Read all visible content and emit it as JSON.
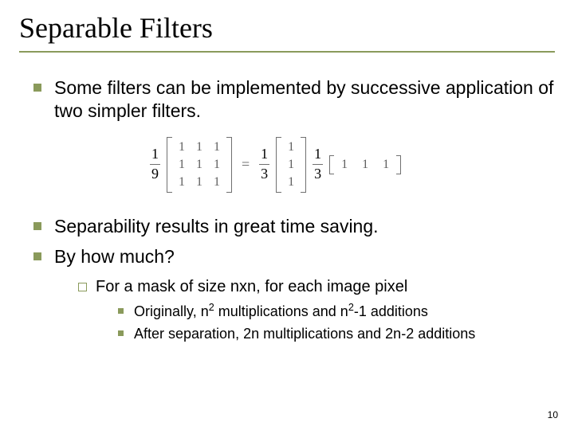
{
  "title": "Separable Filters",
  "bullets": {
    "b1": "Some filters can be implemented by successive application of two simpler filters.",
    "b2": "Separability results in great time saving.",
    "b3": "By how much?",
    "sub1": "For a mask of size nxn, for each image pixel",
    "sub1a_pre": "Originally, n",
    "sub1a_sup1": "2",
    "sub1a_mid": " multiplications and n",
    "sub1a_sup2": "2",
    "sub1a_post": "-1 additions",
    "sub1b": "After separation, 2n multiplications and 2n-2 additions"
  },
  "equation": {
    "frac1_num": "1",
    "frac1_den": "9",
    "matrix3x3": [
      [
        "1",
        "1",
        "1"
      ],
      [
        "1",
        "1",
        "1"
      ],
      [
        "1",
        "1",
        "1"
      ]
    ],
    "eq": "=",
    "frac2_num": "1",
    "frac2_den": "3",
    "colvec": [
      "1",
      "1",
      "1"
    ],
    "frac3_num": "1",
    "frac3_den": "3",
    "rowvec": [
      "1",
      "1",
      "1"
    ]
  },
  "page_number": "10",
  "colors": {
    "accent": "#8a9a5b",
    "text": "#000000",
    "math": "#606060",
    "background": "#ffffff"
  },
  "typography": {
    "title_font": "Times New Roman",
    "title_size_pt": 36,
    "body_font": "Arial",
    "l1_size_pt": 23,
    "l2_size_pt": 20,
    "l3_size_pt": 18,
    "pagenum_size_pt": 12
  }
}
